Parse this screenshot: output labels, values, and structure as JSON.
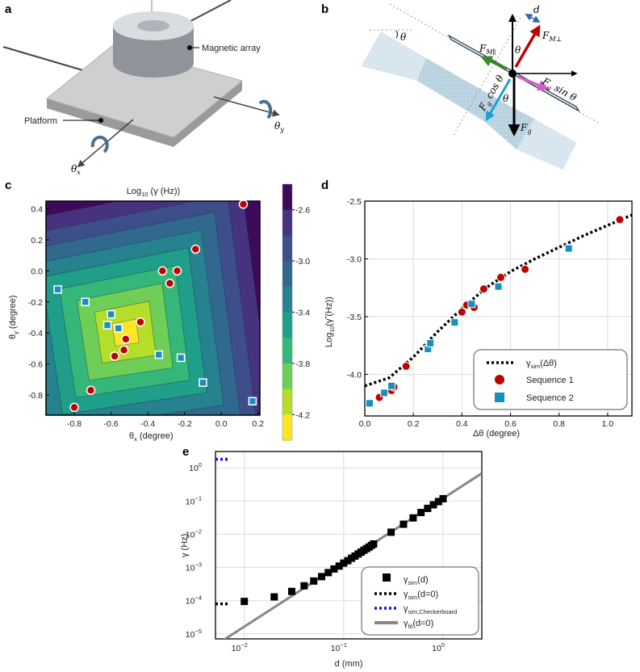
{
  "panels": {
    "a": "a",
    "b": "b",
    "c": "c",
    "d": "d",
    "e": "e"
  },
  "panel_a": {
    "magnetic_array_label": "Magnetic array",
    "platform_label": "Platform",
    "theta_x": {
      "main": "θ",
      "sub": "x"
    },
    "theta_y": {
      "main": "θ",
      "sub": "y"
    }
  },
  "panel_b": {
    "theta": "θ",
    "d": "d",
    "f_m_perp": {
      "main": "F",
      "sub": "M⊥"
    },
    "f_m_par": {
      "main": "F",
      "sub": "M∥"
    },
    "fg_sin": {
      "main": "F",
      "sub": "g",
      "rest": " sin θ"
    },
    "fg_cos": {
      "main": "F",
      "sub": "g",
      "rest": " cos θ"
    },
    "fg": {
      "main": "F",
      "sub": "g"
    }
  },
  "colors": {
    "sequence1": "#c00000",
    "sequence2": "#1a8fbf",
    "viridis_bands": [
      "#3f0a5a",
      "#46327e",
      "#3d4e8a",
      "#31688e",
      "#26828e",
      "#1f9e89",
      "#35b779",
      "#6ece58",
      "#b5de2b",
      "#fde725"
    ],
    "checkerboard": "#1010ff",
    "fit": "#888888"
  },
  "chart_data": [
    {
      "id": "c",
      "type": "heatmap",
      "title": "Log10 (γ (Hz))",
      "title_parts": {
        "pre": "Log",
        "sub": "10",
        "post": " (γ (Hz))"
      },
      "xlabel": {
        "main": "θ",
        "sub": "x",
        "rest": "  (degree)"
      },
      "ylabel": {
        "main": "θ",
        "sub": "y",
        "rest": " (degree)"
      },
      "xlim": [
        -0.954,
        0.21
      ],
      "ylim": [
        -0.93,
        0.45
      ],
      "xticks": [
        "-0.8",
        "-0.6",
        "-0.4",
        "-0.2",
        "0.0",
        "0.2"
      ],
      "yticks": [
        "0.4",
        "0.2",
        "0.0",
        "-0.2",
        "-0.4",
        "-0.6",
        "-0.8"
      ],
      "colorbar": {
        "range": [
          -4.4,
          -2.4
        ],
        "levels": [
          -2.6,
          -2.8,
          -3.0,
          -3.2,
          -3.4,
          -3.6,
          -3.8,
          -4.0,
          -4.2
        ],
        "tick_labels": [
          "-2.6",
          "-3.0",
          "-3.4",
          "-3.8",
          "-4.2"
        ]
      },
      "minimum_location": [
        -0.52,
        -0.4
      ],
      "sequence1": [
        [
          0.12,
          0.43
        ],
        [
          -0.14,
          0.14
        ],
        [
          -0.32,
          0.0
        ],
        [
          -0.24,
          0.0
        ],
        [
          -0.28,
          -0.08
        ],
        [
          -0.44,
          -0.33
        ],
        [
          -0.52,
          -0.44
        ],
        [
          -0.53,
          -0.51
        ],
        [
          -0.58,
          -0.55
        ],
        [
          -0.71,
          -0.77
        ],
        [
          -0.8,
          -0.88
        ]
      ],
      "sequence2": [
        [
          -0.89,
          -0.12
        ],
        [
          -0.74,
          -0.2
        ],
        [
          -0.6,
          -0.28
        ],
        [
          -0.62,
          -0.35
        ],
        [
          -0.56,
          -0.37
        ],
        [
          -0.34,
          -0.54
        ],
        [
          -0.22,
          -0.56
        ],
        [
          -0.1,
          -0.72
        ],
        [
          0.17,
          -0.84
        ]
      ]
    },
    {
      "id": "d",
      "type": "scatter",
      "xlabel": "Δθ (degree)",
      "ylabel": "Log10(γ̃ (Hz))",
      "ylabel_parts": {
        "pre": "Log",
        "sub": "10",
        "post": "(γ̃ (Hz))"
      },
      "xlim": [
        0,
        1.1
      ],
      "ylim": [
        -4.36,
        -2.5
      ],
      "xticks": [
        0.0,
        0.2,
        0.4,
        0.6,
        0.8,
        1.0
      ],
      "xtick_labels": [
        "0.0",
        "0.2",
        "0.4",
        "0.6",
        "0.8",
        "1.0"
      ],
      "yticks": [
        -2.5,
        -3.0,
        -3.5,
        -4.0
      ],
      "ytick_labels": [
        "-2.5",
        "-3.0",
        "-3.5",
        "-4.0"
      ],
      "grid": true,
      "legend_placement": "bottom-right",
      "series": [
        {
          "name": "γsim(Δθ)",
          "label": {
            "main": "γ",
            "sub": "sim",
            "rest": "(Δθ)"
          },
          "style": "dotted",
          "x": [
            0,
            0.1,
            0.2,
            0.3,
            0.4,
            0.5,
            0.6,
            0.7,
            0.8,
            0.9,
            1.0,
            1.1
          ],
          "y": [
            -4.1,
            -4.03,
            -3.85,
            -3.63,
            -3.43,
            -3.25,
            -3.11,
            -3.0,
            -2.9,
            -2.8,
            -2.71,
            -2.62
          ]
        },
        {
          "name": "Sequence 1",
          "label": {
            "main": "Sequence 1"
          },
          "style": "circle",
          "x": [
            0.06,
            0.11,
            0.12,
            0.17,
            0.4,
            0.42,
            0.45,
            0.49,
            0.56,
            0.66,
            1.05
          ],
          "y": [
            -4.2,
            -4.14,
            -4.11,
            -3.93,
            -3.46,
            -3.4,
            -3.42,
            -3.26,
            -3.16,
            -3.09,
            -2.66
          ]
        },
        {
          "name": "Sequence 2",
          "label": {
            "main": "Sequence 2"
          },
          "style": "square",
          "x": [
            0.02,
            0.08,
            0.11,
            0.26,
            0.27,
            0.37,
            0.44,
            0.55,
            0.84
          ],
          "y": [
            -4.25,
            -4.16,
            -4.1,
            -3.78,
            -3.73,
            -3.55,
            -3.39,
            -3.24,
            -2.91
          ]
        }
      ]
    },
    {
      "id": "e",
      "type": "scatter",
      "xscale": "log",
      "yscale": "log",
      "xlabel": "d (mm)",
      "ylabel": "γ (Hz)",
      "xlim_log10": [
        -2.29,
        0.39
      ],
      "ylim_log10": [
        -5.15,
        0.49
      ],
      "xticks_log10": [
        -2,
        -1,
        0
      ],
      "xtick_labels": [
        {
          "b": "10",
          "e": "−2"
        },
        {
          "b": "10",
          "e": "−1"
        },
        {
          "b": "10",
          "e": "0"
        }
      ],
      "yticks_log10": [
        0,
        -1,
        -2,
        -3,
        -4,
        -5
      ],
      "ytick_labels": [
        {
          "b": "10",
          "e": "0"
        },
        {
          "b": "10",
          "e": "−1"
        },
        {
          "b": "10",
          "e": "−2"
        },
        {
          "b": "10",
          "e": "−3"
        },
        {
          "b": "10",
          "e": "−4"
        },
        {
          "b": "10",
          "e": "−5"
        }
      ],
      "grid": true,
      "legend_placement": "bottom-right",
      "series": [
        {
          "name": "γsim(d)",
          "label": {
            "main": "γ",
            "sub": "sim",
            "rest": "(d)"
          },
          "style": "square",
          "x": [
            0.01,
            0.02,
            0.03,
            0.04,
            0.05,
            0.06,
            0.07,
            0.08,
            0.09,
            0.1,
            0.11,
            0.12,
            0.13,
            0.14,
            0.15,
            0.16,
            0.17,
            0.18,
            0.19,
            0.2,
            0.3,
            0.4,
            0.5,
            0.6,
            0.7,
            0.8,
            0.9,
            1.0
          ],
          "y": [
            9.5e-05,
            0.00013,
            0.00019,
            0.00028,
            0.00039,
            0.00053,
            0.0007,
            0.0009,
            0.0011,
            0.00135,
            0.0016,
            0.0019,
            0.0022,
            0.00255,
            0.0029,
            0.0033,
            0.0037,
            0.0041,
            0.0046,
            0.0051,
            0.0115,
            0.02,
            0.031,
            0.045,
            0.06,
            0.077,
            0.096,
            0.117
          ]
        },
        {
          "name": "γsim(d=0)",
          "label": {
            "main": "γ",
            "sub": "sim",
            "rest": "(d=0)"
          },
          "style": "dotted-black",
          "value": 8e-05
        },
        {
          "name": "γsim,Checkerboard",
          "label": {
            "main": "γ",
            "sub": "sim,Checkerboard",
            "rest": ""
          },
          "style": "dotted-blue",
          "value": 1.8
        },
        {
          "name": "γfit(d=0)",
          "label": {
            "main": "γ",
            "sub": "fit",
            "rest": "(d=0)"
          },
          "style": "line",
          "coef": 0.12,
          "exponent": 1.93
        }
      ]
    }
  ]
}
